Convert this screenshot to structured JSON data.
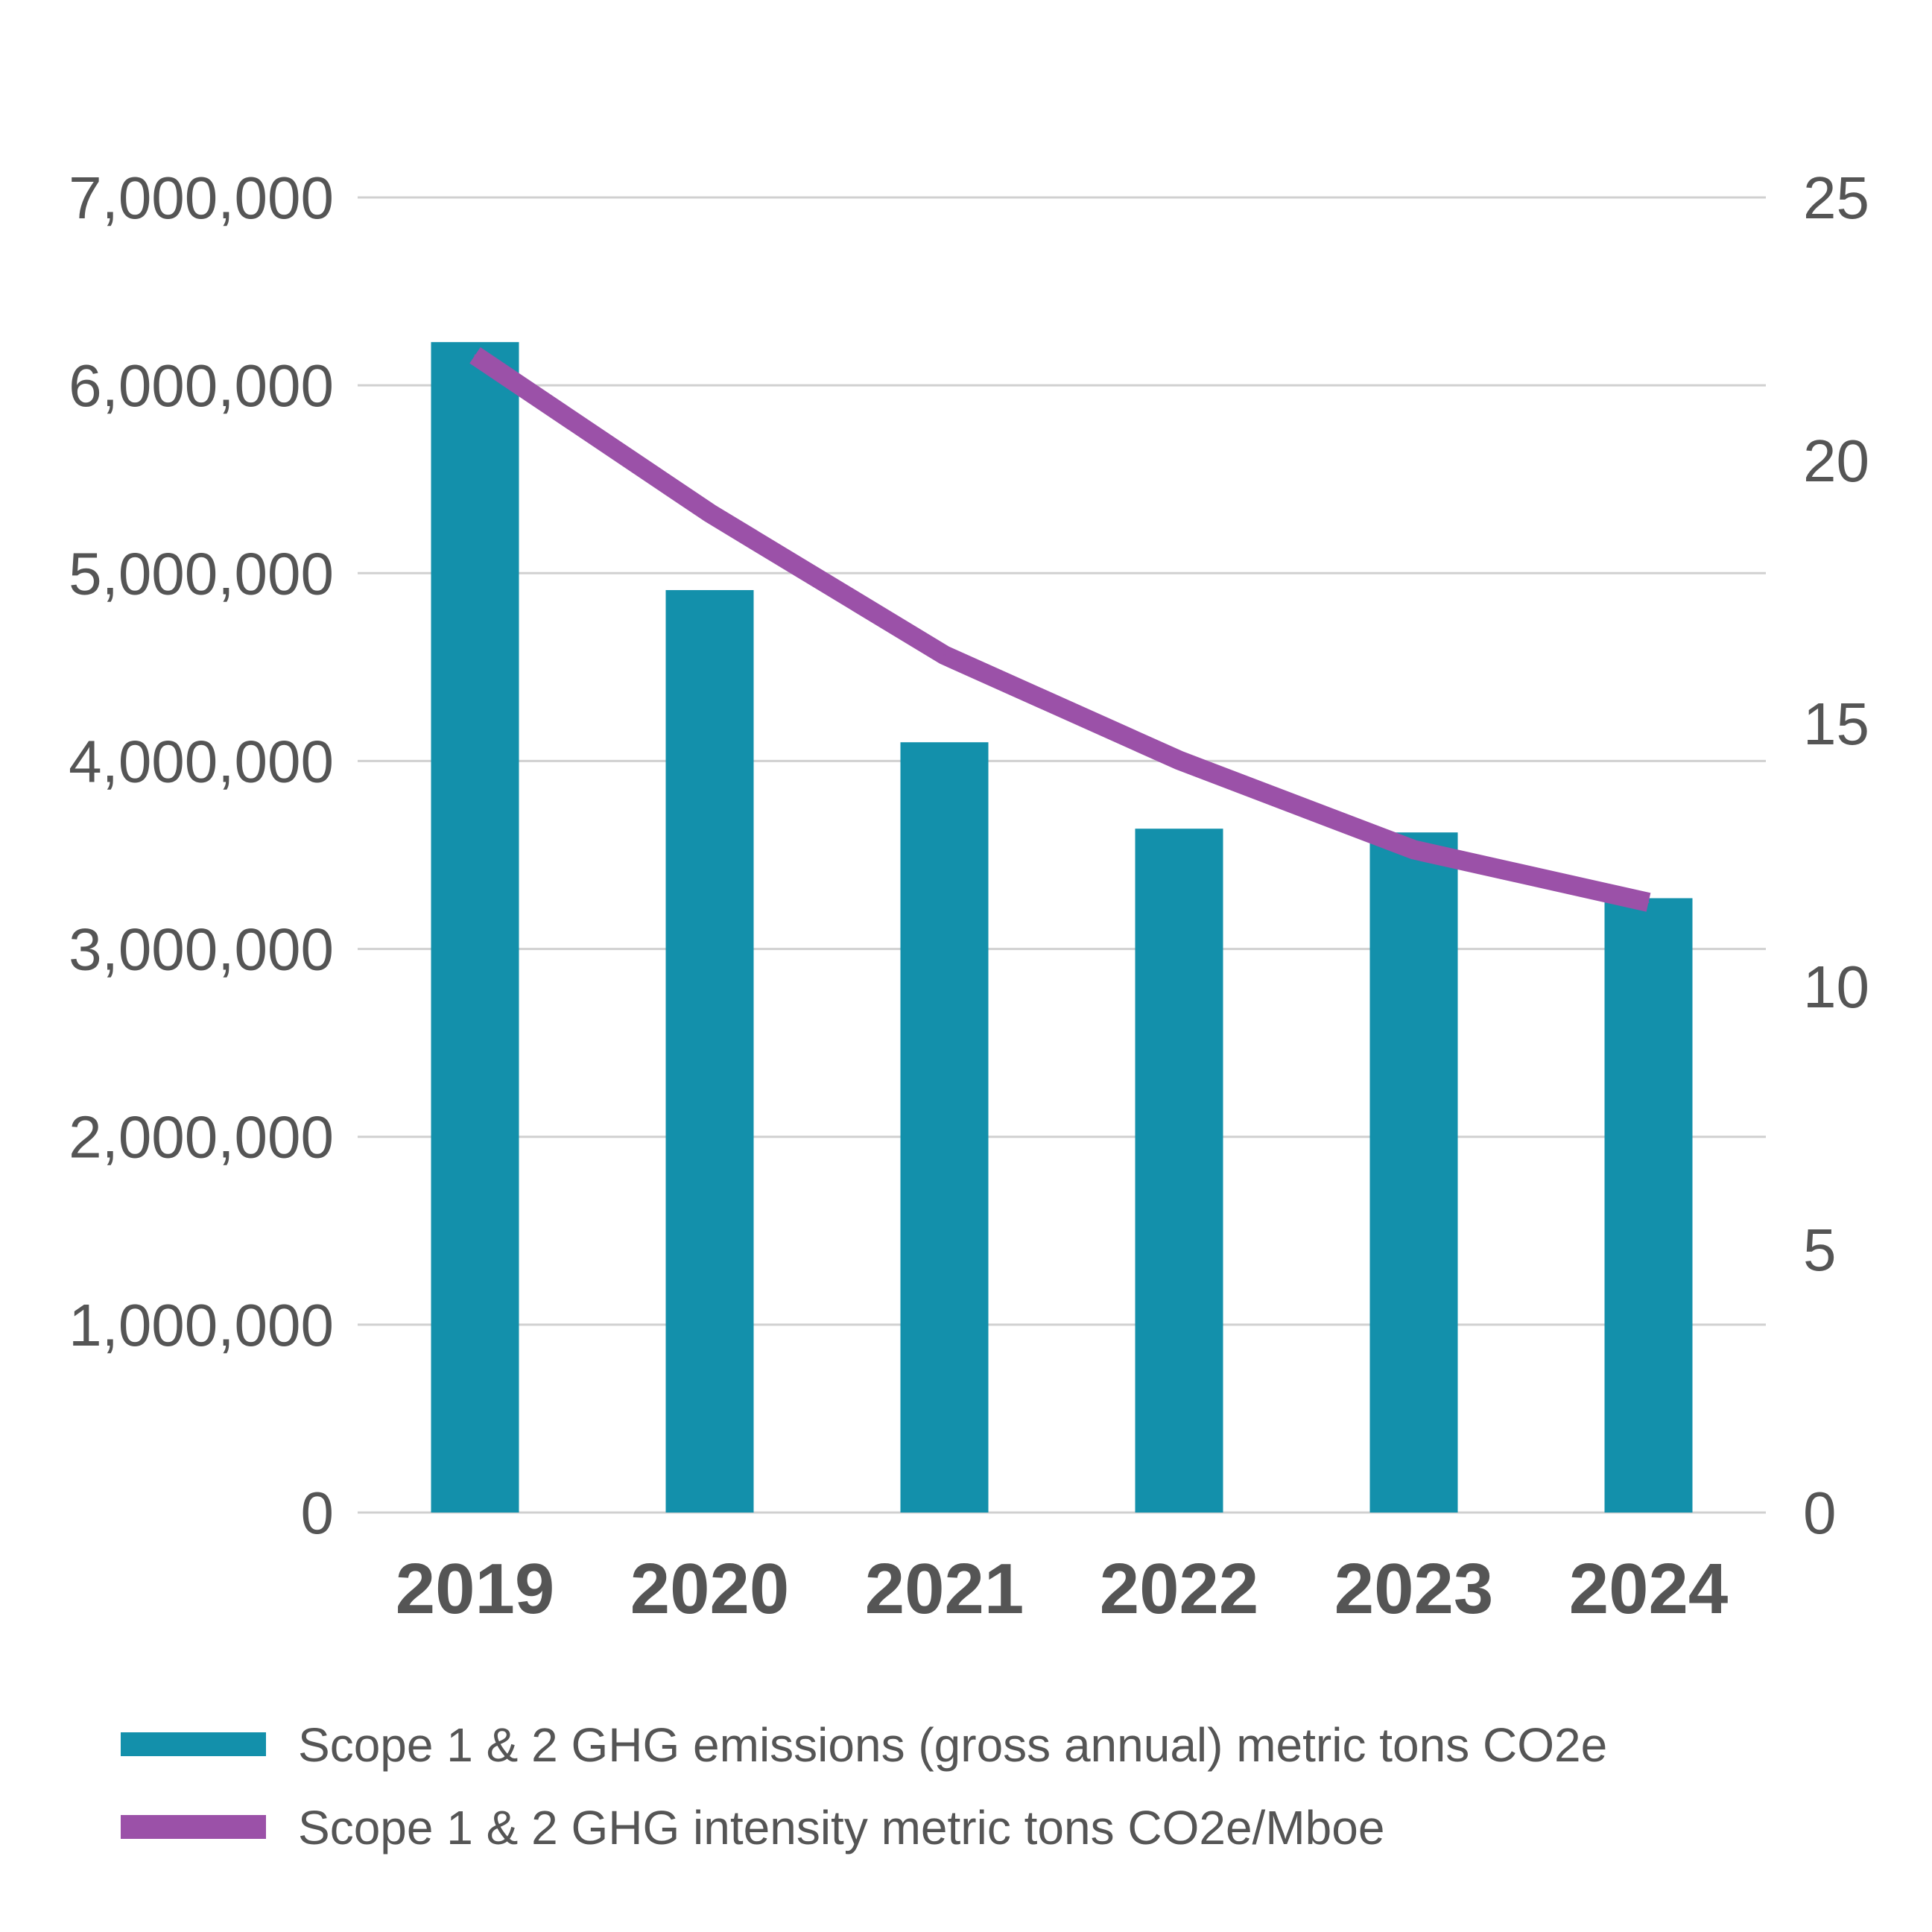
{
  "chart_data": {
    "type": "bar",
    "title": "",
    "categories": [
      "2019",
      "2020",
      "2021",
      "2022",
      "2023",
      "2024"
    ],
    "left_axis": {
      "ylim": [
        0,
        7000000
      ],
      "ticks": [
        0,
        1000000,
        2000000,
        3000000,
        4000000,
        5000000,
        6000000,
        7000000
      ],
      "tick_labels": [
        "0",
        "1,000,000",
        "2,000,000",
        "3,000,000",
        "4,000,000",
        "5,000,000",
        "6,000,000",
        "7,000,000"
      ]
    },
    "right_axis": {
      "ylim": [
        0,
        25
      ],
      "ticks": [
        0,
        5,
        10,
        15,
        20,
        25
      ],
      "tick_labels": [
        "0",
        "5",
        "10",
        "15",
        "20",
        "25"
      ]
    },
    "grid": true,
    "series": [
      {
        "name": "Scope 1 & 2 GHG emissions (gross annual) metric tons CO2e",
        "type": "bar",
        "axis": "left",
        "color": "#1390ab",
        "values": [
          6230000,
          4910000,
          4100000,
          3640000,
          3620000,
          3270000
        ]
      },
      {
        "name": "Scope 1 & 2 GHG intensity metric tons CO2e/Mboe",
        "type": "line",
        "axis": "right",
        "color": "#9b51a8",
        "values": [
          22.0,
          19.0,
          16.3,
          14.3,
          12.6,
          11.6
        ]
      }
    ],
    "legend": {
      "placement": "bottom-left",
      "entries": [
        "Scope 1 & 2 GHG emissions (gross annual) metric tons CO2e",
        "Scope 1 & 2 GHG intensity metric tons CO2e/Mboe"
      ]
    }
  }
}
